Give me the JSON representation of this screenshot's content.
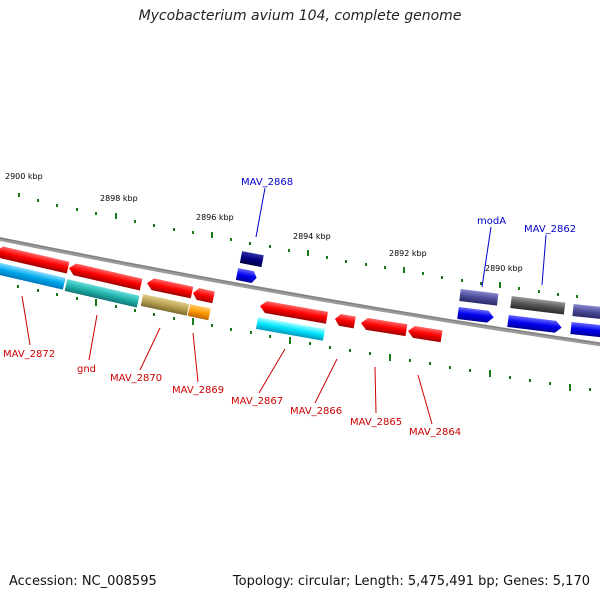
{
  "title": "Mycobacterium avium 104, complete genome",
  "footer": {
    "accession": "Accession: NC_008595",
    "info": "Topology: circular; Length: 5,475,491 bp; Genes: 5,170"
  },
  "scale_labels": [
    "2900 kbp",
    "2898 kbp",
    "2896 kbp",
    "2894 kbp",
    "2892 kbp",
    "2890 kbp"
  ],
  "gene_labels": {
    "forward": [
      {
        "name": "MAV_2868",
        "color": "#0000cc"
      },
      {
        "name": "modA",
        "color": "#0000cc"
      },
      {
        "name": "MAV_2862",
        "color": "#0000cc"
      }
    ],
    "reverse": [
      {
        "name": "MAV_2872",
        "color": "#cc0000"
      },
      {
        "name": "gnd",
        "color": "#cc0000"
      },
      {
        "name": "MAV_2870",
        "color": "#cc0000"
      },
      {
        "name": "MAV_2869",
        "color": "#cc0000"
      },
      {
        "name": "MAV_2867",
        "color": "#cc0000"
      },
      {
        "name": "MAV_2866",
        "color": "#cc0000"
      },
      {
        "name": "MAV_2865",
        "color": "#cc0000"
      },
      {
        "name": "MAV_2864",
        "color": "#cc0000"
      }
    ]
  },
  "colors": {
    "backbone": "#8a8a8a",
    "tick": "#1a7a1a",
    "red_gene": "#ff0000",
    "cyan_gene": "#00ccee",
    "blue_gene": "#0000ee",
    "navy_gene": "#000080",
    "slate_gene": "#4b4b9a",
    "gray_gene": "#555555",
    "teal_gene": "#20b2aa",
    "khaki_gene": "#b8a050",
    "orange_gene": "#ff9900"
  }
}
